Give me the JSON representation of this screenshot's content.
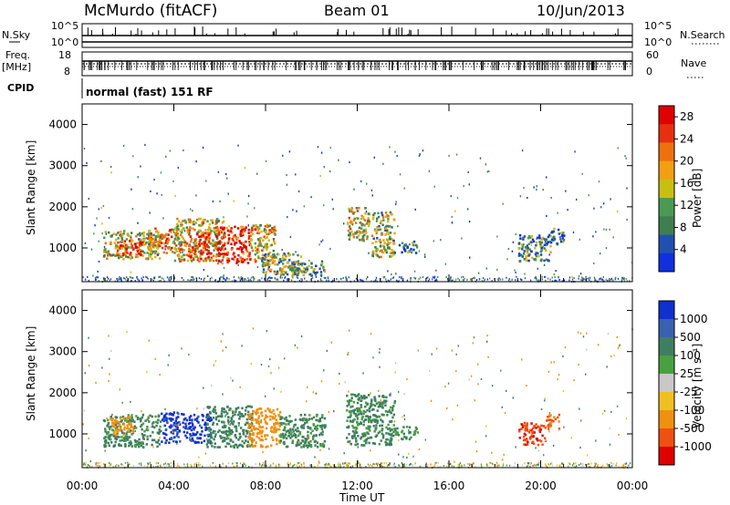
{
  "header": {
    "station": "McMurdo (fitACF)",
    "beam": "Beam 01",
    "date": "10/Jun/2013"
  },
  "status_panel": {
    "nsky_label": "N.Sky",
    "nsearch_label": "N.Search",
    "nsky_ticks": [
      "10^5",
      "10^0"
    ],
    "nsearch_ticks": [
      "10^5",
      "10^0"
    ],
    "freq_label_1": "Freq.",
    "freq_label_2": "[MHz]",
    "freq_ticks": [
      "18",
      "8"
    ],
    "nave_label": "Nave",
    "nave_ticks": [
      "60",
      "0"
    ],
    "cpid_label": "CPID",
    "cpid_text": "normal (fast) 151 RF"
  },
  "colors": {
    "power_scale": [
      "#1030e0",
      "#2050b0",
      "#3f7f4f",
      "#4a9a55",
      "#c8c010",
      "#f0a010",
      "#f07010",
      "#e83010",
      "#e00000"
    ],
    "velocity_scale": [
      "#1030d0",
      "#3a60b0",
      "#3f7f5f",
      "#4aa040",
      "#c8c8c8",
      "#f0c020",
      "#f09010",
      "#f05010",
      "#e00000"
    ]
  },
  "chart_data": [
    {
      "type": "heatmap",
      "name": "power",
      "xlabel": "",
      "ylabel": "Slant Range [km]",
      "xlim": [
        0,
        24
      ],
      "ylim": [
        180,
        4500
      ],
      "yticks": [
        1000,
        2000,
        3000,
        4000
      ],
      "xticks_hours": [
        0,
        4,
        8,
        12,
        16,
        20,
        24
      ],
      "colorbar_label": "Power [dB]",
      "colorbar_ticks": [
        "4",
        "8",
        "12",
        "16",
        "20",
        "24",
        "28"
      ],
      "colorbar_range": [
        0,
        30
      ],
      "blobs": [
        {
          "t0": 0.9,
          "t1": 3.4,
          "r0": 750,
          "r1": 1450,
          "v": 15
        },
        {
          "t0": 1.5,
          "t1": 2.6,
          "r0": 850,
          "r1": 1200,
          "v": 25
        },
        {
          "t0": 2.8,
          "t1": 4.2,
          "r0": 900,
          "r1": 1500,
          "v": 20
        },
        {
          "t0": 4.0,
          "t1": 6.2,
          "r0": 700,
          "r1": 1750,
          "v": 17
        },
        {
          "t0": 4.6,
          "t1": 5.6,
          "r0": 750,
          "r1": 1400,
          "v": 26
        },
        {
          "t0": 5.8,
          "t1": 7.3,
          "r0": 650,
          "r1": 1550,
          "v": 27
        },
        {
          "t0": 7.2,
          "t1": 8.4,
          "r0": 600,
          "r1": 1600,
          "v": 18
        },
        {
          "t0": 7.8,
          "t1": 9.6,
          "r0": 350,
          "r1": 900,
          "v": 12
        },
        {
          "t0": 9.0,
          "t1": 10.6,
          "r0": 350,
          "r1": 700,
          "v": 10
        },
        {
          "t0": 11.5,
          "t1": 12.5,
          "r0": 1200,
          "r1": 2000,
          "v": 15
        },
        {
          "t0": 12.6,
          "t1": 13.6,
          "r0": 800,
          "r1": 1900,
          "v": 14
        },
        {
          "t0": 13.8,
          "t1": 14.6,
          "r0": 900,
          "r1": 1200,
          "v": 6
        },
        {
          "t0": 19.0,
          "t1": 20.4,
          "r0": 700,
          "r1": 1350,
          "v": 9
        },
        {
          "t0": 20.4,
          "t1": 21.0,
          "r0": 1100,
          "r1": 1500,
          "v": 7
        }
      ]
    },
    {
      "type": "heatmap",
      "name": "velocity",
      "xlabel": "Time UT",
      "ylabel": "Slant Range [km]",
      "xlim": [
        0,
        24
      ],
      "ylim": [
        180,
        4500
      ],
      "yticks": [
        1000,
        2000,
        3000,
        4000
      ],
      "xticks": [
        "00:00",
        "04:00",
        "08:00",
        "12:00",
        "16:00",
        "20:00",
        "00:00"
      ],
      "xticks_hours": [
        0,
        4,
        8,
        12,
        16,
        20,
        24
      ],
      "colorbar_label": "Velocity [m s⁻¹]",
      "colorbar_ticks": [
        "1000",
        "500",
        "100",
        "25",
        "-25",
        "-100",
        "-500",
        "-1000"
      ],
      "blobs": [
        {
          "t0": 0.9,
          "t1": 3.4,
          "r0": 700,
          "r1": 1500,
          "v": 80
        },
        {
          "t0": 1.2,
          "t1": 2.2,
          "r0": 1000,
          "r1": 1450,
          "v": -150
        },
        {
          "t0": 3.4,
          "t1": 4.4,
          "r0": 800,
          "r1": 1550,
          "v": 700
        },
        {
          "t0": 4.4,
          "t1": 5.6,
          "r0": 800,
          "r1": 1500,
          "v": 900
        },
        {
          "t0": 5.4,
          "t1": 7.4,
          "r0": 700,
          "r1": 1700,
          "v": 100
        },
        {
          "t0": 7.2,
          "t1": 8.6,
          "r0": 700,
          "r1": 1650,
          "v": -150
        },
        {
          "t0": 8.6,
          "t1": 10.6,
          "r0": 700,
          "r1": 1500,
          "v": 80
        },
        {
          "t0": 11.5,
          "t1": 13.6,
          "r0": 750,
          "r1": 2000,
          "v": 80
        },
        {
          "t0": 13.6,
          "t1": 14.6,
          "r0": 900,
          "r1": 1200,
          "v": 60
        },
        {
          "t0": 19.0,
          "t1": 20.2,
          "r0": 750,
          "r1": 1300,
          "v": -600
        },
        {
          "t0": 20.2,
          "t1": 20.8,
          "r0": 1150,
          "r1": 1500,
          "v": -400
        }
      ]
    }
  ]
}
